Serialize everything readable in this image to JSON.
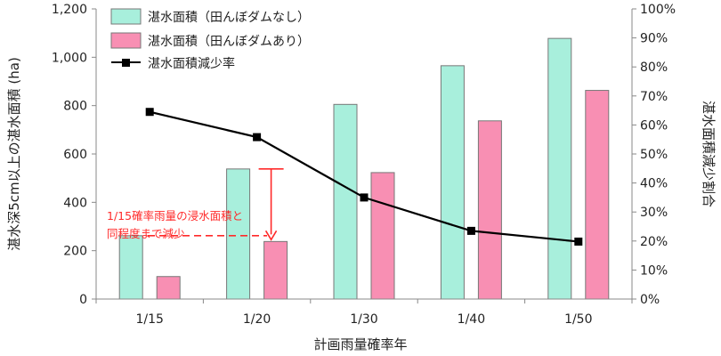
{
  "chart_data": {
    "type": "bar",
    "categories": [
      "1/15",
      "1/20",
      "1/30",
      "1/40",
      "1/50"
    ],
    "series": [
      {
        "name": "湛水面積（田んぼダムなし）",
        "type": "bar",
        "axis": "left",
        "values": [
          262,
          538,
          805,
          965,
          1078
        ],
        "color": "#a8efdc"
      },
      {
        "name": "湛水面積（田んぼダムあり）",
        "type": "bar",
        "axis": "left",
        "values": [
          93,
          238,
          523,
          737,
          863
        ],
        "color": "#f88fb3"
      },
      {
        "name": "湛水面積減少率",
        "type": "line",
        "axis": "right",
        "values": [
          64.5,
          55.8,
          35.0,
          23.5,
          19.8
        ],
        "color": "#000000"
      }
    ],
    "xlabel": "計画雨量確率年",
    "ylabel": "湛水深5cm以上の湛水面積 (ha)",
    "y2label": "湛水面積減少割合",
    "ylim": [
      0,
      1200
    ],
    "y2lim": [
      0,
      100
    ],
    "yticks": [
      "0",
      "200",
      "400",
      "600",
      "800",
      "1,000",
      "1,200"
    ],
    "y2ticks": [
      "0%",
      "10%",
      "20%",
      "30%",
      "40%",
      "50%",
      "60%",
      "70%",
      "80%",
      "90%",
      "100%"
    ],
    "legend_position": "top-left",
    "grid": false,
    "annotation": {
      "lines": [
        "1/15確率雨量の浸水面積と",
        "同程度まで減少"
      ],
      "color": "#ff2a2a"
    }
  }
}
